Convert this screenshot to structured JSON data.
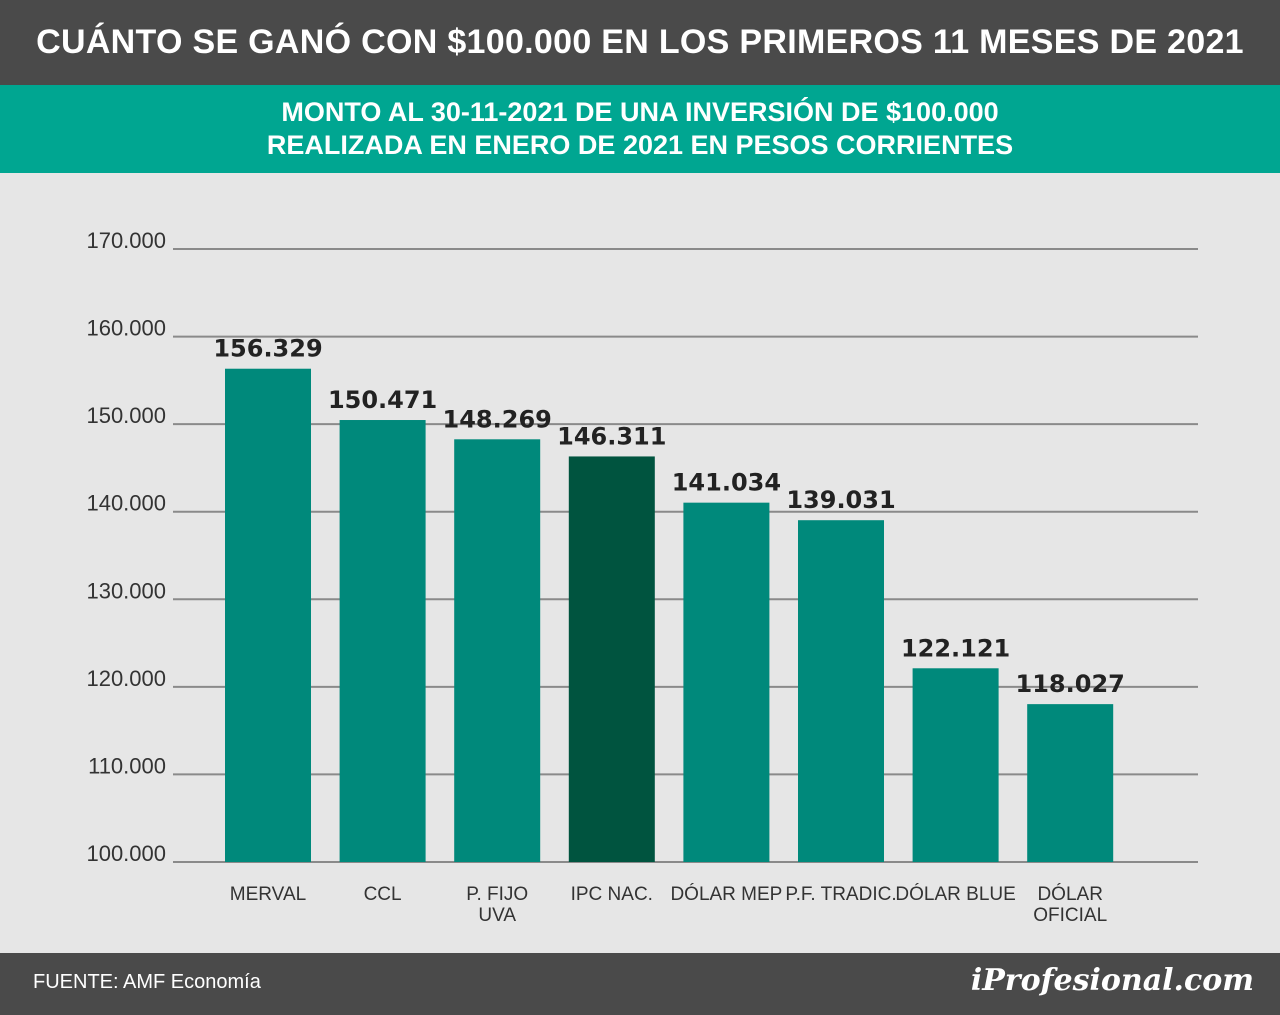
{
  "header": {
    "title": "CUÁNTO SE GANÓ CON $100.000 EN LOS PRIMEROS 11 MESES DE 2021",
    "subtitle_line1": "MONTO AL 30-11-2021 DE UNA INVERSIÓN DE $100.000",
    "subtitle_line2": "REALIZADA EN ENERO DE 2021 EN PESOS CORRIENTES"
  },
  "footer": {
    "source": "FUENTE: AMF Economía",
    "brand": "iProfesional.com"
  },
  "colors": {
    "title_bg": "#4a4a4a",
    "subtitle_bg": "#00a691",
    "bar": "#00897b",
    "bar_highlight": "#00543f",
    "gridline": "#8a8a8a",
    "background": "#e6e6e6"
  },
  "chart_data": {
    "type": "bar",
    "categories": [
      [
        "MERVAL"
      ],
      [
        "CCL"
      ],
      [
        "P. FIJO",
        "UVA"
      ],
      [
        "IPC NAC."
      ],
      [
        "DÓLAR MEP"
      ],
      [
        "P.F. TRADIC."
      ],
      [
        "DÓLAR BLUE"
      ],
      [
        "DÓLAR",
        "OFICIAL"
      ]
    ],
    "values": [
      156329,
      150471,
      148269,
      146311,
      141034,
      139031,
      122121,
      118027
    ],
    "value_labels": [
      "156.329",
      "150.471",
      "148.269",
      "146.311",
      "141.034",
      "139.031",
      "122.121",
      "118.027"
    ],
    "highlight_index": 3,
    "ylim": [
      100000,
      170000
    ],
    "yticks": [
      100000,
      110000,
      120000,
      130000,
      140000,
      150000,
      160000,
      170000
    ],
    "ytick_labels": [
      "100.000",
      "110.000",
      "120.000",
      "130.000",
      "140.000",
      "150.000",
      "160.000",
      "170.000"
    ],
    "grid": true,
    "title": "CUÁNTO SE GANÓ CON $100.000 EN LOS PRIMEROS 11 MESES DE 2021",
    "xlabel": "",
    "ylabel": ""
  }
}
